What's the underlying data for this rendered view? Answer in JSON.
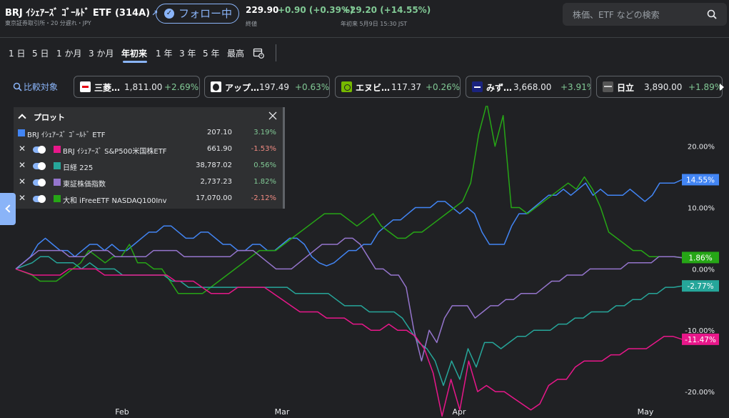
{
  "header": {
    "title": "BRJ ｲｼｪｱｰｽﾞ ｺﾞｰﾙﾄﾞ ETF (314A)",
    "subtitle": "東京証券取引所・20 分遅れ・JPY",
    "follow_label": "フォロー中",
    "price": "229.90",
    "change": "+0.90 (+0.39%)",
    "ytd_change": "+29.20 (+14.55%)",
    "close_label": "終値",
    "ytd_label": "年初来 5月9日 15:30 JST"
  },
  "search": {
    "placeholder": "株価、ETF などの検索"
  },
  "ranges": {
    "items": [
      {
        "label": "1 日"
      },
      {
        "label": "5 日"
      },
      {
        "label": "1 か月"
      },
      {
        "label": "3 か月"
      },
      {
        "label": "年初来"
      },
      {
        "label": "1 年"
      },
      {
        "label": "3 年"
      },
      {
        "label": "5 年"
      },
      {
        "label": "最高"
      }
    ],
    "active": "年初来"
  },
  "compare": {
    "label": "比較対象",
    "chips": [
      {
        "name": "三菱…",
        "price": "1,811.00",
        "pct": "+2.69%",
        "logo_color": "#ffffff"
      },
      {
        "name": "アップ…",
        "price": "197.49",
        "pct": "+0.63%",
        "logo_color": "#ffffff"
      },
      {
        "name": "エヌビ…",
        "price": "117.37",
        "pct": "+0.26%",
        "logo_color": "#76b900"
      },
      {
        "name": "みず…",
        "price": "3,668.00",
        "pct": "+3.91%",
        "logo_color": "#1a237e"
      },
      {
        "name": "日立",
        "price": "3,890.00",
        "pct": "+1.89%",
        "logo_color": "#555555"
      }
    ]
  },
  "legend": {
    "title": "プロット",
    "rows": [
      {
        "name": "BRJ ｲｼｪｱｰｽﾞ ｺﾞｰﾙﾄﾞ ETF",
        "value": "207.10",
        "pct": "3.19%",
        "color": "#4285f4",
        "pct_color": "#81c995"
      },
      {
        "name": "BRJ ｲｼｪｱｰｽﾞ S&P500米国株ETF",
        "value": "661.90",
        "pct": "-1.53%",
        "color": "#e8178a",
        "pct_color": "#f28b82"
      },
      {
        "name": "日経 225",
        "value": "38,787.02",
        "pct": "0.56%",
        "color": "#26a69a",
        "pct_color": "#81c995"
      },
      {
        "name": "東証株価指数",
        "value": "2,737.23",
        "pct": "1.82%",
        "color": "#9575cd",
        "pct_color": "#81c995"
      },
      {
        "name": "大和 iFreeETF NASDAQ100Inv",
        "value": "17,070.00",
        "pct": "-2.12%",
        "color": "#26a616",
        "pct_color": "#f28b82"
      }
    ]
  },
  "chart_data": {
    "type": "line",
    "x_axis_labels": [
      "Feb",
      "Mar",
      "Apr",
      "May"
    ],
    "y_tick_labels": [
      "20.00%",
      "10.00%",
      "0.00%",
      "-10.00%",
      "-20.00%"
    ],
    "y_ticks": [
      20,
      10,
      0,
      -10,
      -20
    ],
    "ylim": [
      -24.3,
      26.6
    ],
    "grid": false,
    "end_labels": [
      {
        "text": "14.55%",
        "value": 14.55,
        "color": "#4285f4"
      },
      {
        "text": "1.86%",
        "value": 1.86,
        "color": "#26a616"
      },
      {
        "text": "-2.77%",
        "value": -2.77,
        "color": "#26a69a"
      },
      {
        "text": "-11.47%",
        "value": -11.47,
        "color": "#e8178a"
      }
    ],
    "series": [
      {
        "color": "#4285f4",
        "values": [
          0,
          1,
          2,
          4,
          5,
          4,
          3,
          3,
          2,
          3,
          4,
          4,
          3,
          4,
          3,
          3,
          4,
          5,
          6,
          6,
          7,
          7,
          6,
          5,
          5,
          6,
          6,
          5,
          4,
          4,
          3,
          3,
          4,
          4,
          3,
          3,
          4,
          5,
          5,
          4,
          2,
          1,
          0.5,
          1,
          2,
          3,
          3,
          4,
          4,
          6,
          7,
          8,
          8,
          9,
          10,
          10,
          10,
          11,
          11,
          10,
          9,
          10,
          9,
          6,
          4,
          4,
          4,
          7,
          9,
          9,
          10,
          11,
          12,
          12,
          13,
          12,
          13,
          14,
          12,
          13,
          12,
          12,
          12,
          13,
          12,
          11,
          12,
          14,
          14,
          14,
          14.55
        ]
      },
      {
        "color": "#26a616",
        "values": [
          0,
          -0.5,
          -1,
          -2,
          -2,
          -2,
          -1,
          0,
          1,
          3,
          2,
          1,
          2,
          2,
          4,
          1,
          1,
          0,
          0,
          -2,
          -4,
          -4,
          -4,
          -4,
          -3,
          -2,
          -1,
          0,
          1,
          2,
          3,
          3,
          3,
          4,
          5,
          6,
          7,
          8,
          9,
          9,
          9,
          8,
          7,
          8,
          9,
          7,
          6,
          5,
          5,
          6,
          6,
          7,
          8,
          9,
          10,
          11,
          14,
          22,
          27,
          20,
          25,
          10,
          10,
          9,
          10,
          11,
          12,
          13,
          14,
          13,
          15,
          13,
          10,
          6,
          5,
          4,
          3,
          3,
          2,
          2,
          2,
          2,
          1.86
        ]
      },
      {
        "color": "#26a69a",
        "values": [
          0,
          0.5,
          1,
          2,
          2,
          1,
          1,
          1,
          0,
          1,
          0,
          0,
          0,
          -1,
          -1,
          -1,
          -1,
          -1,
          -1,
          -2,
          -2,
          -3,
          -3,
          -3,
          -3,
          -3,
          -3,
          -3,
          -3,
          -3,
          -3,
          -3,
          -3,
          -3,
          -4,
          -4,
          -4,
          -4,
          -4,
          -5,
          -6,
          -6,
          -6,
          -7,
          -7,
          -7,
          -7,
          -8,
          -10,
          -12,
          -13,
          -15,
          -19,
          -15,
          -18,
          -13,
          -16,
          -12,
          -12,
          -13,
          -12,
          -11,
          -11,
          -10,
          -10,
          -10,
          -9,
          -9,
          -8,
          -8,
          -7,
          -7,
          -7,
          -6,
          -6,
          -5,
          -5,
          -4,
          -4,
          -3,
          -3,
          -2.77
        ]
      },
      {
        "color": "#9575cd",
        "values": [
          0,
          1,
          2,
          3,
          3,
          3,
          3,
          2,
          2,
          2,
          3,
          3,
          3,
          2,
          2,
          2,
          2,
          2,
          3,
          3,
          3,
          3,
          2,
          2,
          2,
          2,
          2,
          2,
          2,
          3,
          3,
          3,
          2,
          1,
          0,
          0,
          0,
          1,
          2,
          3,
          4,
          4,
          4,
          5,
          5,
          4,
          2,
          0,
          0,
          -1,
          -1,
          -3,
          -10,
          -15,
          -10,
          -12,
          -8,
          -6,
          -6,
          -6,
          -8,
          -7,
          -6,
          -6,
          -5,
          -5,
          -4,
          -4,
          -4,
          -3,
          -2,
          -2,
          -1,
          -1,
          -1,
          0,
          0,
          0,
          0,
          0,
          1,
          1,
          1,
          1,
          2,
          2,
          2,
          1.82
        ]
      },
      {
        "color": "#e8178a",
        "values": [
          0,
          -0.5,
          -1,
          -1,
          -1,
          -1,
          0,
          0,
          0,
          0,
          -1,
          -1,
          -1,
          -1,
          -1,
          -1,
          -1,
          -1,
          -2,
          -2,
          -2,
          -3,
          -4,
          -4,
          -4,
          -3,
          -3,
          -3,
          -3,
          -4,
          -5,
          -6,
          -7,
          -7,
          -7,
          -8,
          -8,
          -8,
          -9,
          -9,
          -10,
          -10,
          -9,
          -10,
          -10,
          -11,
          -13,
          -17,
          -24,
          -18,
          -23,
          -15,
          -20,
          -19,
          -20,
          -20,
          -21,
          -22,
          -23,
          -22,
          -19,
          -18,
          -18,
          -16,
          -15,
          -15,
          -15,
          -14,
          -14,
          -13,
          -13,
          -13,
          -12,
          -11,
          -11,
          -11.47
        ]
      }
    ]
  }
}
